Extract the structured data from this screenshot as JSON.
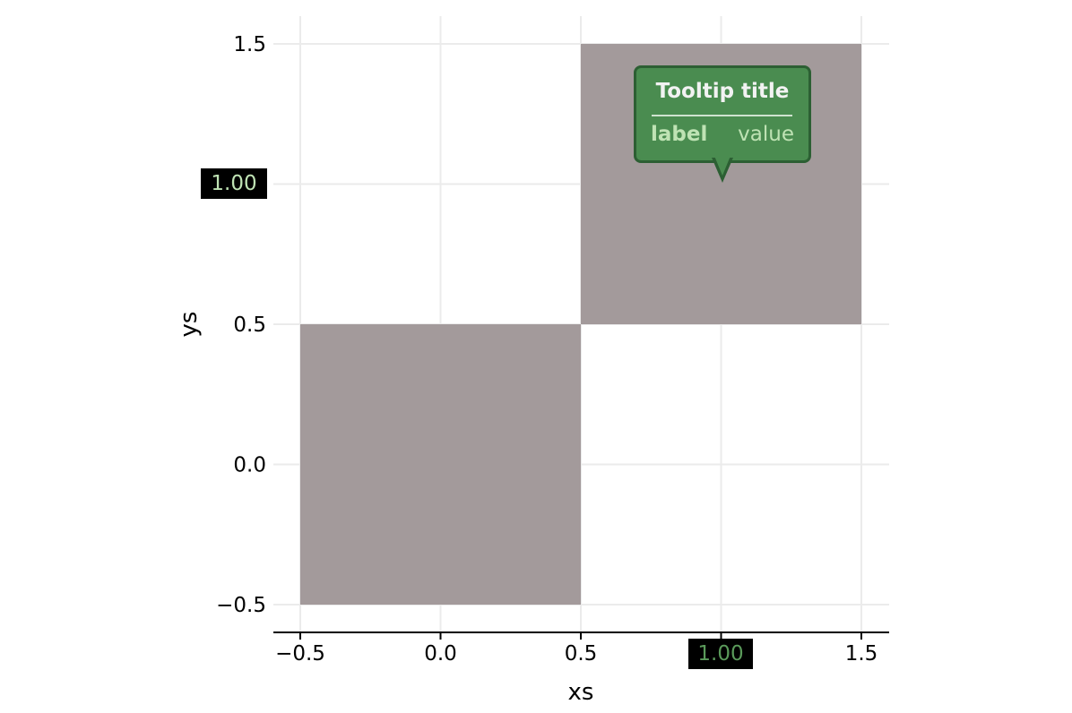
{
  "chart_data": {
    "type": "heatmap",
    "xlabel": "xs",
    "ylabel": "ys",
    "xlim": [
      -0.6,
      1.6
    ],
    "ylim": [
      -0.6,
      1.6
    ],
    "x_ticks": [
      "−0.5",
      "0.0",
      "0.5",
      "1.00",
      "1.5"
    ],
    "x_tick_values": [
      -0.5,
      0.0,
      0.5,
      1.0,
      1.5
    ],
    "y_ticks": [
      "−0.5",
      "0.0",
      "0.5",
      "1.00",
      "1.5"
    ],
    "y_tick_values": [
      -0.5,
      0.0,
      0.5,
      1.0,
      1.5
    ],
    "cells": [
      {
        "x": 0,
        "y": 0,
        "filled": true
      },
      {
        "x": 1,
        "y": 0,
        "filled": false
      },
      {
        "x": 0,
        "y": 1,
        "filled": false
      },
      {
        "x": 1,
        "y": 1,
        "filled": true
      }
    ],
    "cell_color": "#a39a9b",
    "grid": true,
    "legend": "none"
  },
  "tooltip": {
    "title": "Tooltip title",
    "label": "label",
    "value": "value",
    "at": [
      1.0,
      1.0
    ],
    "background": "#4a8c50",
    "border": "#2c5f33"
  },
  "crosshair": {
    "x_label": "1.00",
    "y_label": "1.00"
  }
}
